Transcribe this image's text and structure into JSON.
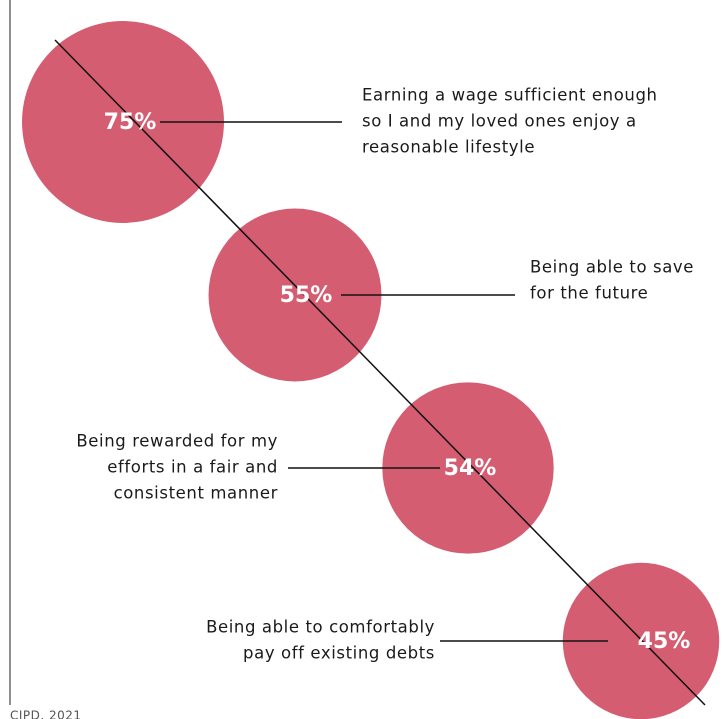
{
  "chart_data": {
    "type": "bubble",
    "categories": [
      [
        "Earning a wage sufficient enough",
        "so I and my loved ones enjoy a",
        "reasonable lifestyle"
      ],
      [
        "Being able to save",
        "for the future"
      ],
      [
        "Being rewarded for my",
        "efforts in a fair and",
        "consistent manner"
      ],
      [
        "Being able to comfortably",
        "pay off existing debts"
      ]
    ],
    "values": [
      75,
      55,
      54,
      45
    ],
    "value_labels": [
      "75%",
      "55%",
      "54%",
      "45%"
    ],
    "color": "#d45d72",
    "source": "CIPD, 2021"
  }
}
